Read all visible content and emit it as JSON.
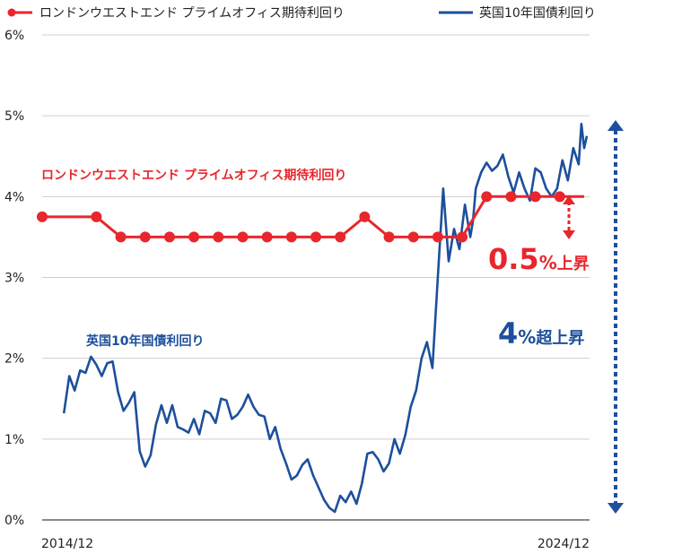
{
  "chart_data": {
    "type": "line",
    "legend": {
      "placement": "top",
      "items": [
        {
          "name": "ロンドンウエストエンド プライムオフィス期待利回り",
          "color": "#e8262c",
          "marker": "dot"
        },
        {
          "name": "英国10年国債利回り",
          "color": "#1d4f9c",
          "marker": "line"
        }
      ]
    },
    "y_ticks": [
      "0%",
      "1%",
      "2%",
      "3%",
      "4%",
      "5%",
      "6%"
    ],
    "ylim": [
      0,
      6
    ],
    "x_tick_labels": [
      "2014/12",
      "2024/12"
    ],
    "xlim": [
      2014.9,
      2025.0
    ],
    "grid": "horizontal",
    "series": [
      {
        "name": "ロンドンウエストエンド プライムオフィス期待利回り",
        "color": "#e8262c",
        "label": "ロンドンウエストエンド プライムオフィス期待利回り",
        "x": [
          2014.9,
          2015.9,
          2016.35,
          2016.8,
          2017.25,
          2017.7,
          2018.15,
          2018.6,
          2019.05,
          2019.5,
          2019.95,
          2020.4,
          2020.85,
          2021.3,
          2021.75,
          2022.2,
          2022.65,
          2023.1,
          2023.55,
          2024.0,
          2024.45,
          2024.9
        ],
        "values": [
          3.75,
          3.75,
          3.5,
          3.5,
          3.5,
          3.5,
          3.5,
          3.5,
          3.5,
          3.5,
          3.5,
          3.5,
          3.75,
          3.5,
          3.5,
          3.5,
          3.5,
          4.0,
          4.0,
          4.0,
          4.0,
          4.0
        ]
      },
      {
        "name": "英国10年国債利回り",
        "color": "#1d4f9c",
        "label": "英国10年国債利回り",
        "x": [
          2015.3,
          2015.4,
          2015.5,
          2015.6,
          2015.7,
          2015.8,
          2015.9,
          2016.0,
          2016.1,
          2016.2,
          2016.3,
          2016.4,
          2016.5,
          2016.6,
          2016.7,
          2016.8,
          2016.9,
          2017.0,
          2017.1,
          2017.2,
          2017.3,
          2017.4,
          2017.5,
          2017.6,
          2017.7,
          2017.8,
          2017.9,
          2018.0,
          2018.1,
          2018.2,
          2018.3,
          2018.4,
          2018.5,
          2018.6,
          2018.7,
          2018.8,
          2018.9,
          2019.0,
          2019.1,
          2019.2,
          2019.3,
          2019.4,
          2019.5,
          2019.6,
          2019.7,
          2019.8,
          2019.9,
          2020.0,
          2020.1,
          2020.2,
          2020.3,
          2020.4,
          2020.5,
          2020.6,
          2020.7,
          2020.8,
          2020.9,
          2021.0,
          2021.1,
          2021.2,
          2021.3,
          2021.4,
          2021.5,
          2021.6,
          2021.7,
          2021.8,
          2021.9,
          2022.0,
          2022.1,
          2022.2,
          2022.3,
          2022.4,
          2022.5,
          2022.6,
          2022.7,
          2022.8,
          2022.85,
          2022.9,
          2023.0,
          2023.1,
          2023.2,
          2023.3,
          2023.4,
          2023.5,
          2023.6,
          2023.7,
          2023.8,
          2023.9,
          2024.0,
          2024.1,
          2024.2,
          2024.3,
          2024.4,
          2024.5,
          2024.6,
          2024.7,
          2024.8,
          2024.85,
          2024.9,
          2024.95
        ],
        "values": [
          1.32,
          1.78,
          1.6,
          1.85,
          1.82,
          2.02,
          1.92,
          1.78,
          1.94,
          1.96,
          1.58,
          1.35,
          1.45,
          1.58,
          0.85,
          0.66,
          0.8,
          1.18,
          1.42,
          1.2,
          1.42,
          1.15,
          1.12,
          1.08,
          1.25,
          1.06,
          1.35,
          1.32,
          1.2,
          1.5,
          1.48,
          1.25,
          1.3,
          1.4,
          1.55,
          1.4,
          1.3,
          1.28,
          1.0,
          1.15,
          0.88,
          0.7,
          0.5,
          0.55,
          0.68,
          0.75,
          0.55,
          0.4,
          0.25,
          0.15,
          0.1,
          0.3,
          0.22,
          0.35,
          0.2,
          0.45,
          0.82,
          0.84,
          0.75,
          0.6,
          0.7,
          1.0,
          0.82,
          1.05,
          1.4,
          1.6,
          2.0,
          2.2,
          1.88,
          3.0,
          4.1,
          3.2,
          3.6,
          3.35,
          3.9,
          3.5,
          3.7,
          4.1,
          4.3,
          4.42,
          4.32,
          4.38,
          4.52,
          4.25,
          4.05,
          4.3,
          4.1,
          3.95,
          4.35,
          4.3,
          4.1,
          4.0,
          4.1,
          4.45,
          4.2,
          4.6,
          4.4,
          4.9,
          4.6,
          4.75
        ]
      }
    ],
    "annotations": [
      {
        "text": "0.5",
        "suffix": "%",
        "tail": "上昇",
        "color": "#e8262c"
      },
      {
        "text": "4",
        "suffix": "%",
        "tail": "超上昇",
        "color": "#1d4f9c"
      }
    ]
  }
}
